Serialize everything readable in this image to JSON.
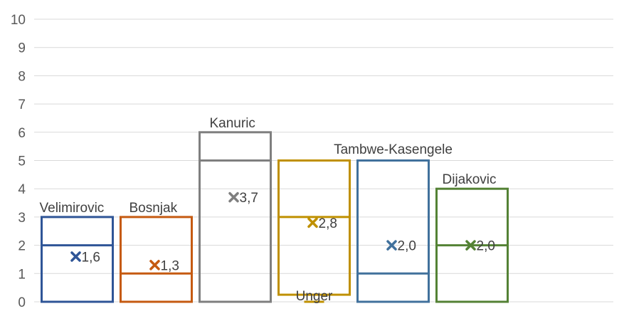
{
  "chart_data": {
    "type": "box",
    "title": "",
    "xlabel": "",
    "ylabel": "",
    "ylim": [
      0,
      10
    ],
    "yticks": [
      0,
      1,
      2,
      3,
      4,
      5,
      6,
      7,
      8,
      9,
      10
    ],
    "grid": true,
    "legend": "none",
    "series": [
      {
        "name": "Velimirovic",
        "min": 0,
        "q1": 0,
        "median": 2,
        "q3": 3,
        "max": 3,
        "mean": 1.6,
        "mean_label": "1,6",
        "color": "#2F5597"
      },
      {
        "name": "Bosnjak",
        "min": 0,
        "q1": 0,
        "median": 1,
        "q3": 3,
        "max": 3,
        "mean": 1.3,
        "mean_label": "1,3",
        "color": "#C55A11"
      },
      {
        "name": "Kanuric",
        "min": 0,
        "q1": 0,
        "median": 5,
        "q3": 6,
        "max": 6,
        "mean": 3.7,
        "mean_label": "3,7",
        "color": "#7F7F7F"
      },
      {
        "name": "Unger",
        "min": 0,
        "q1": 0.25,
        "median": 3,
        "q3": 5,
        "max": 5,
        "mean": 2.8,
        "mean_label": "2,8",
        "color": "#BF9000"
      },
      {
        "name": "Tambwe-Kasengele",
        "min": 0,
        "q1": 0,
        "median": 1,
        "q3": 5,
        "max": 5,
        "mean": 2.0,
        "mean_label": "2,0",
        "color": "#41719C"
      },
      {
        "name": "Dijakovic",
        "min": 0,
        "q1": 0,
        "median": 2,
        "q3": 4,
        "max": 4,
        "mean": 2.0,
        "mean_label": "2,0",
        "color": "#548235"
      }
    ]
  }
}
